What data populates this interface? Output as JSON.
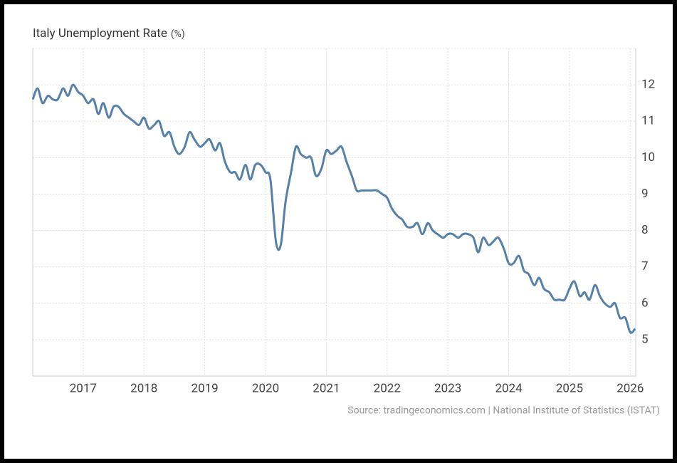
{
  "chart_data": {
    "type": "line",
    "title": "Italy Unemployment Rate",
    "unit": "(%)",
    "source": "Source: tradingeconomics.com | National Institute of Statistics (ISTAT)",
    "x": [
      2016.17,
      2016.25,
      2016.33,
      2016.42,
      2016.5,
      2016.58,
      2016.67,
      2016.75,
      2016.83,
      2016.92,
      2017,
      2017.08,
      2017.17,
      2017.25,
      2017.33,
      2017.42,
      2017.5,
      2017.58,
      2017.67,
      2017.75,
      2017.83,
      2017.92,
      2018,
      2018.08,
      2018.17,
      2018.25,
      2018.33,
      2018.42,
      2018.5,
      2018.58,
      2018.67,
      2018.75,
      2018.83,
      2018.92,
      2019,
      2019.08,
      2019.17,
      2019.25,
      2019.33,
      2019.42,
      2019.5,
      2019.58,
      2019.67,
      2019.75,
      2019.83,
      2019.92,
      2020,
      2020.08,
      2020.17,
      2020.25,
      2020.33,
      2020.42,
      2020.5,
      2020.58,
      2020.67,
      2020.75,
      2020.83,
      2020.92,
      2021,
      2021.08,
      2021.17,
      2021.25,
      2021.33,
      2021.42,
      2021.5,
      2021.58,
      2021.67,
      2021.75,
      2021.83,
      2021.92,
      2022,
      2022.08,
      2022.17,
      2022.25,
      2022.33,
      2022.42,
      2022.5,
      2022.58,
      2022.67,
      2022.75,
      2022.83,
      2022.92,
      2023,
      2023.08,
      2023.17,
      2023.25,
      2023.33,
      2023.42,
      2023.5,
      2023.58,
      2023.67,
      2023.75,
      2023.83,
      2023.92,
      2024,
      2024.08,
      2024.17,
      2024.25,
      2024.33,
      2024.42,
      2024.5,
      2024.58,
      2024.67,
      2024.75,
      2024.83,
      2024.92,
      2025,
      2025.08,
      2025.17,
      2025.25,
      2025.33,
      2025.42,
      2025.5,
      2025.58,
      2025.67,
      2025.75,
      2025.83,
      2025.92,
      2026,
      2026.08
    ],
    "series": [
      {
        "color": "#5580a9",
        "values": [
          11.6,
          11.9,
          11.5,
          11.7,
          11.6,
          11.6,
          11.9,
          11.7,
          12.0,
          11.8,
          11.7,
          11.5,
          11.6,
          11.2,
          11.5,
          11.1,
          11.4,
          11.4,
          11.2,
          11.1,
          11.0,
          10.9,
          11.1,
          10.8,
          10.9,
          11.0,
          10.6,
          10.7,
          10.3,
          10.1,
          10.3,
          10.7,
          10.5,
          10.3,
          10.4,
          10.5,
          10.2,
          10.4,
          9.9,
          9.6,
          9.6,
          9.4,
          9.8,
          9.4,
          9.8,
          9.8,
          9.6,
          9.4,
          7.7,
          7.6,
          8.8,
          9.6,
          10.3,
          10.1,
          10.0,
          10.0,
          9.5,
          9.7,
          10.2,
          10.1,
          10.2,
          10.3,
          9.9,
          9.5,
          9.1,
          9.1,
          9.1,
          9.1,
          9.1,
          9.0,
          8.9,
          8.6,
          8.4,
          8.3,
          8.1,
          8.1,
          8.2,
          7.9,
          8.2,
          8.0,
          7.9,
          7.8,
          7.9,
          7.9,
          7.8,
          7.9,
          7.9,
          7.8,
          7.4,
          7.8,
          7.6,
          7.7,
          7.8,
          7.5,
          7.1,
          7.1,
          7.3,
          6.9,
          6.8,
          6.5,
          6.7,
          6.4,
          6.3,
          6.1,
          6.1,
          6.1,
          6.4,
          6.6,
          6.2,
          6.3,
          6.1,
          6.5,
          6.2,
          6.0,
          5.9,
          6.0,
          5.6,
          5.6,
          5.2,
          5.3
        ]
      }
    ],
    "xlim": [
      2016.17,
      2026.09
    ],
    "xticks": [
      2017,
      2018,
      2019,
      2020,
      2021,
      2022,
      2023,
      2024,
      2025,
      2026
    ],
    "ylim": [
      4,
      13
    ],
    "yticks": [
      5,
      6,
      7,
      8,
      9,
      10,
      11,
      12
    ],
    "grid": true
  }
}
